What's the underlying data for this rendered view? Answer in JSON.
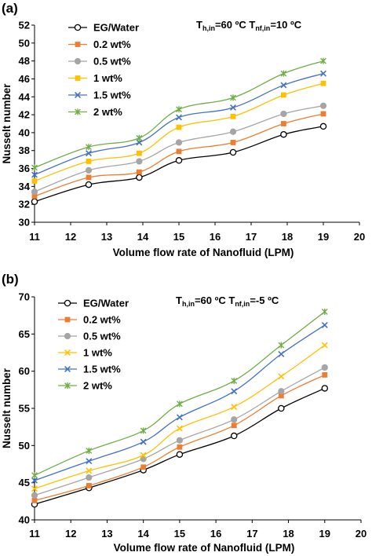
{
  "chart_data": [
    {
      "type": "line",
      "panel_label": "(a)",
      "condition": {
        "text_1": "T",
        "sub_1": "h,in",
        "mid": "=60 ºC T",
        "sub_2": "nf,in",
        "tail": "=10 ºC"
      },
      "xlabel": "Volume flow rate of Nanofluid (LPM)",
      "ylabel": "Nusselt number",
      "xlim": [
        11,
        20
      ],
      "ylim": [
        30,
        52
      ],
      "xticks": [
        11,
        12,
        13,
        14,
        15,
        16,
        17,
        18,
        19,
        20
      ],
      "yticks": [
        30,
        32,
        34,
        36,
        38,
        40,
        42,
        44,
        46,
        48,
        50,
        52
      ],
      "grid": false,
      "legend_position": "top-left",
      "x": [
        11.0,
        12.5,
        13.9,
        15.0,
        16.5,
        17.9,
        19.0
      ],
      "series": [
        {
          "name": "EG/Water",
          "color": "#000000",
          "marker": "circle-open",
          "values": [
            32.3,
            34.2,
            35.0,
            36.9,
            37.8,
            39.8,
            40.7
          ]
        },
        {
          "name": "0.2 wt%",
          "color": "#ed7d31",
          "marker": "square",
          "values": [
            32.9,
            35.0,
            35.6,
            37.9,
            38.9,
            41.0,
            42.1
          ]
        },
        {
          "name": "0.5 wt%",
          "color": "#a5a5a5",
          "marker": "circle",
          "values": [
            33.4,
            35.8,
            36.8,
            38.9,
            40.1,
            42.1,
            43.0
          ]
        },
        {
          "name": "1 wt%",
          "color": "#ffc000",
          "marker": "square",
          "values": [
            34.6,
            36.8,
            37.7,
            40.6,
            41.8,
            44.2,
            45.5
          ]
        },
        {
          "name": "1.5 wt%",
          "color": "#4472c4",
          "marker": "x",
          "values": [
            35.3,
            37.7,
            38.9,
            41.7,
            42.8,
            45.3,
            46.6
          ]
        },
        {
          "name": "2 wt%",
          "color": "#70ad47",
          "marker": "star",
          "values": [
            36.1,
            38.4,
            39.4,
            42.6,
            43.9,
            46.6,
            48.0
          ]
        }
      ]
    },
    {
      "type": "line",
      "panel_label": "(b)",
      "condition": {
        "text_1": "T",
        "sub_1": "h,in",
        "mid": "=60 ºC T",
        "sub_2": "nf,in",
        "tail": "=-5 ºC"
      },
      "xlabel": "Volume flow rate of Nanofluid (LPM)",
      "ylabel": "Nusselt number",
      "xlim": [
        11,
        20
      ],
      "ylim": [
        40,
        70
      ],
      "xticks": [
        11,
        12,
        13,
        14,
        15,
        16,
        17,
        18,
        19,
        20
      ],
      "yticks": [
        40,
        45,
        50,
        55,
        60,
        65,
        70
      ],
      "grid": false,
      "legend_position": "top-left",
      "x": [
        11.0,
        12.5,
        14.0,
        15.0,
        16.5,
        17.8,
        19.0
      ],
      "series": [
        {
          "name": "EG/Water",
          "color": "#000000",
          "marker": "circle-open",
          "values": [
            42.1,
            44.3,
            46.7,
            48.8,
            51.3,
            55.0,
            57.7
          ]
        },
        {
          "name": "0.2 wt%",
          "color": "#ed7d31",
          "marker": "square",
          "values": [
            42.6,
            44.6,
            47.1,
            49.8,
            52.7,
            56.7,
            59.5
          ]
        },
        {
          "name": "0.5 wt%",
          "color": "#a5a5a5",
          "marker": "circle",
          "values": [
            43.3,
            45.7,
            48.2,
            50.7,
            53.5,
            57.3,
            60.5
          ]
        },
        {
          "name": "1 wt%",
          "color": "#ffc000",
          "marker": "x",
          "values": [
            44.2,
            46.6,
            48.7,
            52.3,
            55.2,
            59.3,
            63.5
          ]
        },
        {
          "name": "1.5 wt%",
          "color": "#4472c4",
          "marker": "x",
          "values": [
            45.3,
            47.9,
            50.5,
            53.8,
            57.3,
            62.3,
            66.2
          ]
        },
        {
          "name": "2 wt%",
          "color": "#70ad47",
          "marker": "star",
          "values": [
            46.0,
            49.3,
            52.0,
            55.6,
            58.7,
            63.5,
            68.0
          ]
        }
      ]
    }
  ]
}
